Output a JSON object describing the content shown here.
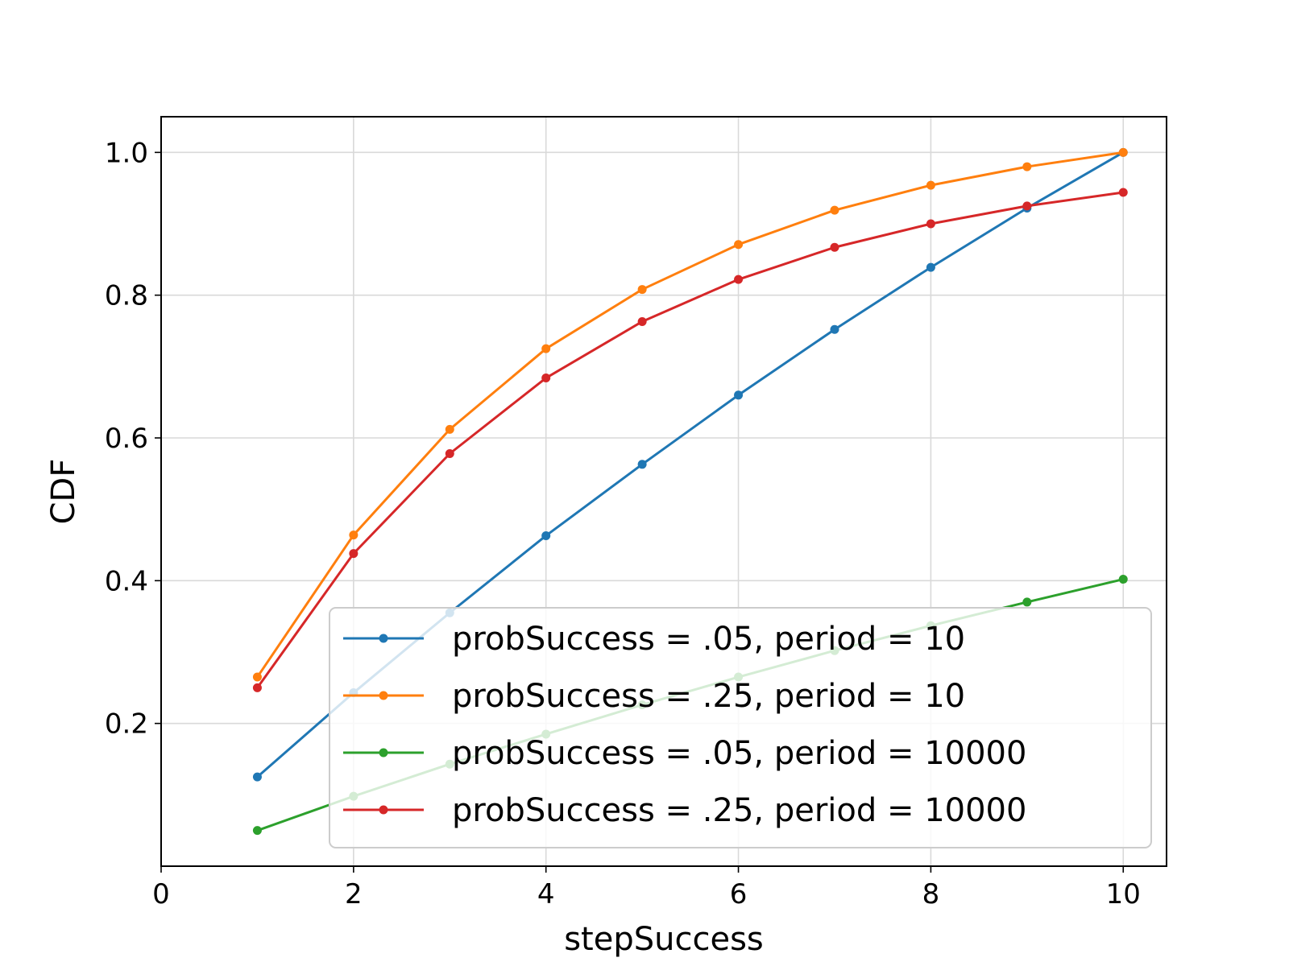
{
  "chart_data": {
    "type": "line",
    "xlabel": "stepSuccess",
    "ylabel": "CDF",
    "xlim": [
      0,
      10.45
    ],
    "ylim": [
      0.0,
      1.05
    ],
    "xticks": [
      0,
      2,
      4,
      6,
      8,
      10
    ],
    "yticks": [
      0.2,
      0.4,
      0.6,
      0.8,
      1.0
    ],
    "xtick_labels": [
      "0",
      "2",
      "4",
      "6",
      "8",
      "10"
    ],
    "ytick_labels": [
      "0.2",
      "0.4",
      "0.6",
      "0.8",
      "1.0"
    ],
    "grid": true,
    "legend_position": "lower-right",
    "x": [
      1,
      2,
      3,
      4,
      5,
      6,
      7,
      8,
      9,
      10
    ],
    "series": [
      {
        "name": "probSuccess = .05, period = 10",
        "color": "#1f77b4",
        "values": [
          0.125,
          0.243,
          0.355,
          0.463,
          0.563,
          0.66,
          0.752,
          0.839,
          0.922,
          1.0
        ]
      },
      {
        "name": "probSuccess = .25, period = 10",
        "color": "#ff7f0e",
        "values": [
          0.265,
          0.464,
          0.612,
          0.725,
          0.808,
          0.871,
          0.919,
          0.954,
          0.98,
          1.0
        ]
      },
      {
        "name": "probSuccess = .05, period = 10000",
        "color": "#2ca02c",
        "values": [
          0.05,
          0.098,
          0.143,
          0.185,
          0.226,
          0.265,
          0.302,
          0.337,
          0.37,
          0.402
        ]
      },
      {
        "name": "probSuccess = .25, period = 10000",
        "color": "#d62728",
        "values": [
          0.25,
          0.438,
          0.578,
          0.684,
          0.763,
          0.822,
          0.867,
          0.9,
          0.925,
          0.944
        ]
      }
    ]
  }
}
